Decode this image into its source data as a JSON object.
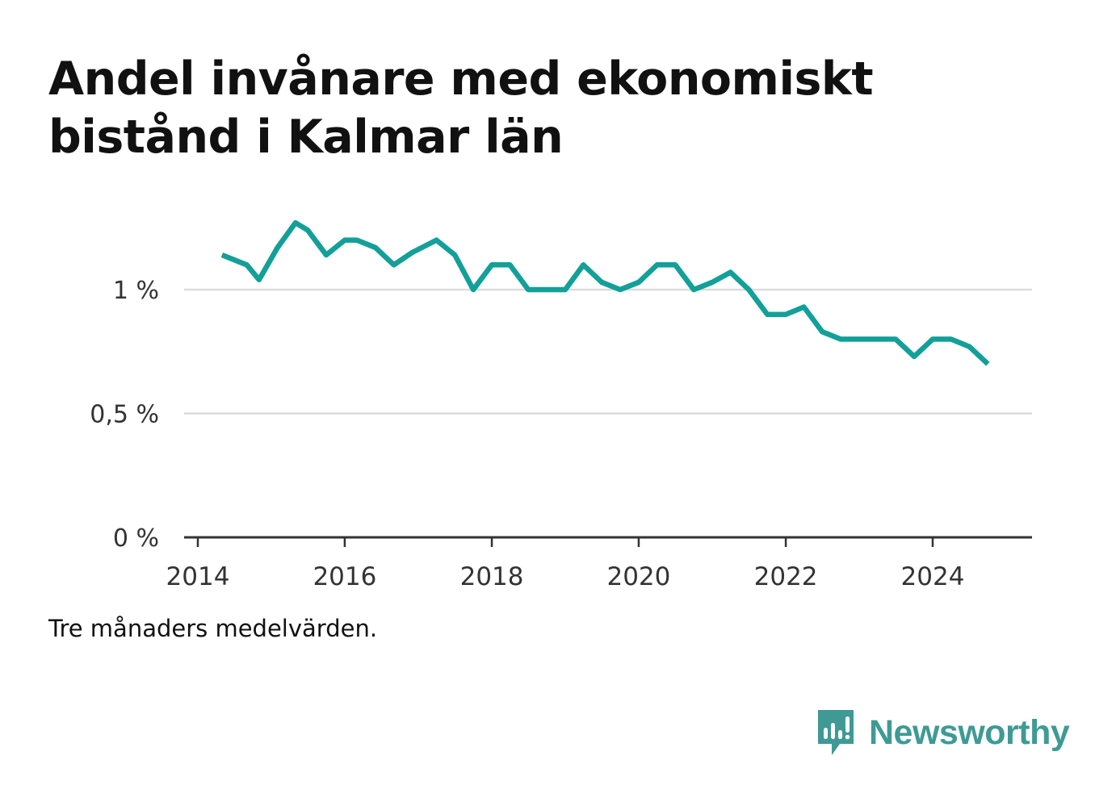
{
  "title_lines": [
    "Andel invånare med ekonomiskt",
    "bistånd i Kalmar län"
  ],
  "note": "Tre månaders medelvärden.",
  "brand": {
    "name": "Newsworthy",
    "icon": "newsworthy-logo-icon",
    "color": "#3f9a95"
  },
  "colors": {
    "line": "#12a099",
    "grid": "#dcdcdc",
    "axis": "#333333",
    "tick_text": "#333333"
  },
  "chart_data": {
    "type": "line",
    "title": "Andel invånare med ekonomiskt bistånd i Kalmar län",
    "xlabel": "",
    "ylabel": "",
    "xlim": [
      "2014-01-01",
      "2025-06-30"
    ],
    "ylim": [
      0,
      1.3
    ],
    "x_ticks": [
      "2014",
      "2016",
      "2018",
      "2020",
      "2022",
      "2024"
    ],
    "y_ticks": [
      {
        "value": 0,
        "label": "0 %"
      },
      {
        "value": 0.5,
        "label": "0,5 %"
      },
      {
        "value": 1,
        "label": "1 %"
      }
    ],
    "grid": true,
    "series": [
      {
        "x": [
          "2014-05-01",
          "2014-09-01",
          "2014-11-01",
          "2015-02-01",
          "2015-05-01",
          "2015-07-01",
          "2015-10-01",
          "2016-01-01",
          "2016-03-01",
          "2016-06-01",
          "2016-09-01",
          "2016-12-01",
          "2017-04-01",
          "2017-07-01",
          "2017-10-01",
          "2018-01-01",
          "2018-04-01",
          "2018-07-01",
          "2018-10-01",
          "2019-01-01",
          "2019-04-01",
          "2019-07-01",
          "2019-10-01",
          "2020-01-01",
          "2020-04-01",
          "2020-07-01",
          "2020-10-01",
          "2021-01-01",
          "2021-04-01",
          "2021-07-01",
          "2021-10-01",
          "2022-01-01",
          "2022-04-01",
          "2022-07-01",
          "2022-10-01",
          "2023-01-01",
          "2023-04-01",
          "2023-07-01",
          "2023-10-01",
          "2024-01-01",
          "2024-04-01",
          "2024-07-01",
          "2024-10-01"
        ],
        "values": [
          1.14,
          1.1,
          1.04,
          1.17,
          1.27,
          1.24,
          1.14,
          1.2,
          1.2,
          1.17,
          1.1,
          1.15,
          1.2,
          1.14,
          1.0,
          1.1,
          1.1,
          1.0,
          1.0,
          1.0,
          1.1,
          1.03,
          1.0,
          1.03,
          1.1,
          1.1,
          1.0,
          1.03,
          1.07,
          1.0,
          0.9,
          0.9,
          0.93,
          0.83,
          0.8,
          0.8,
          0.8,
          0.8,
          0.73,
          0.8,
          0.8,
          0.77,
          0.7
        ]
      }
    ]
  }
}
